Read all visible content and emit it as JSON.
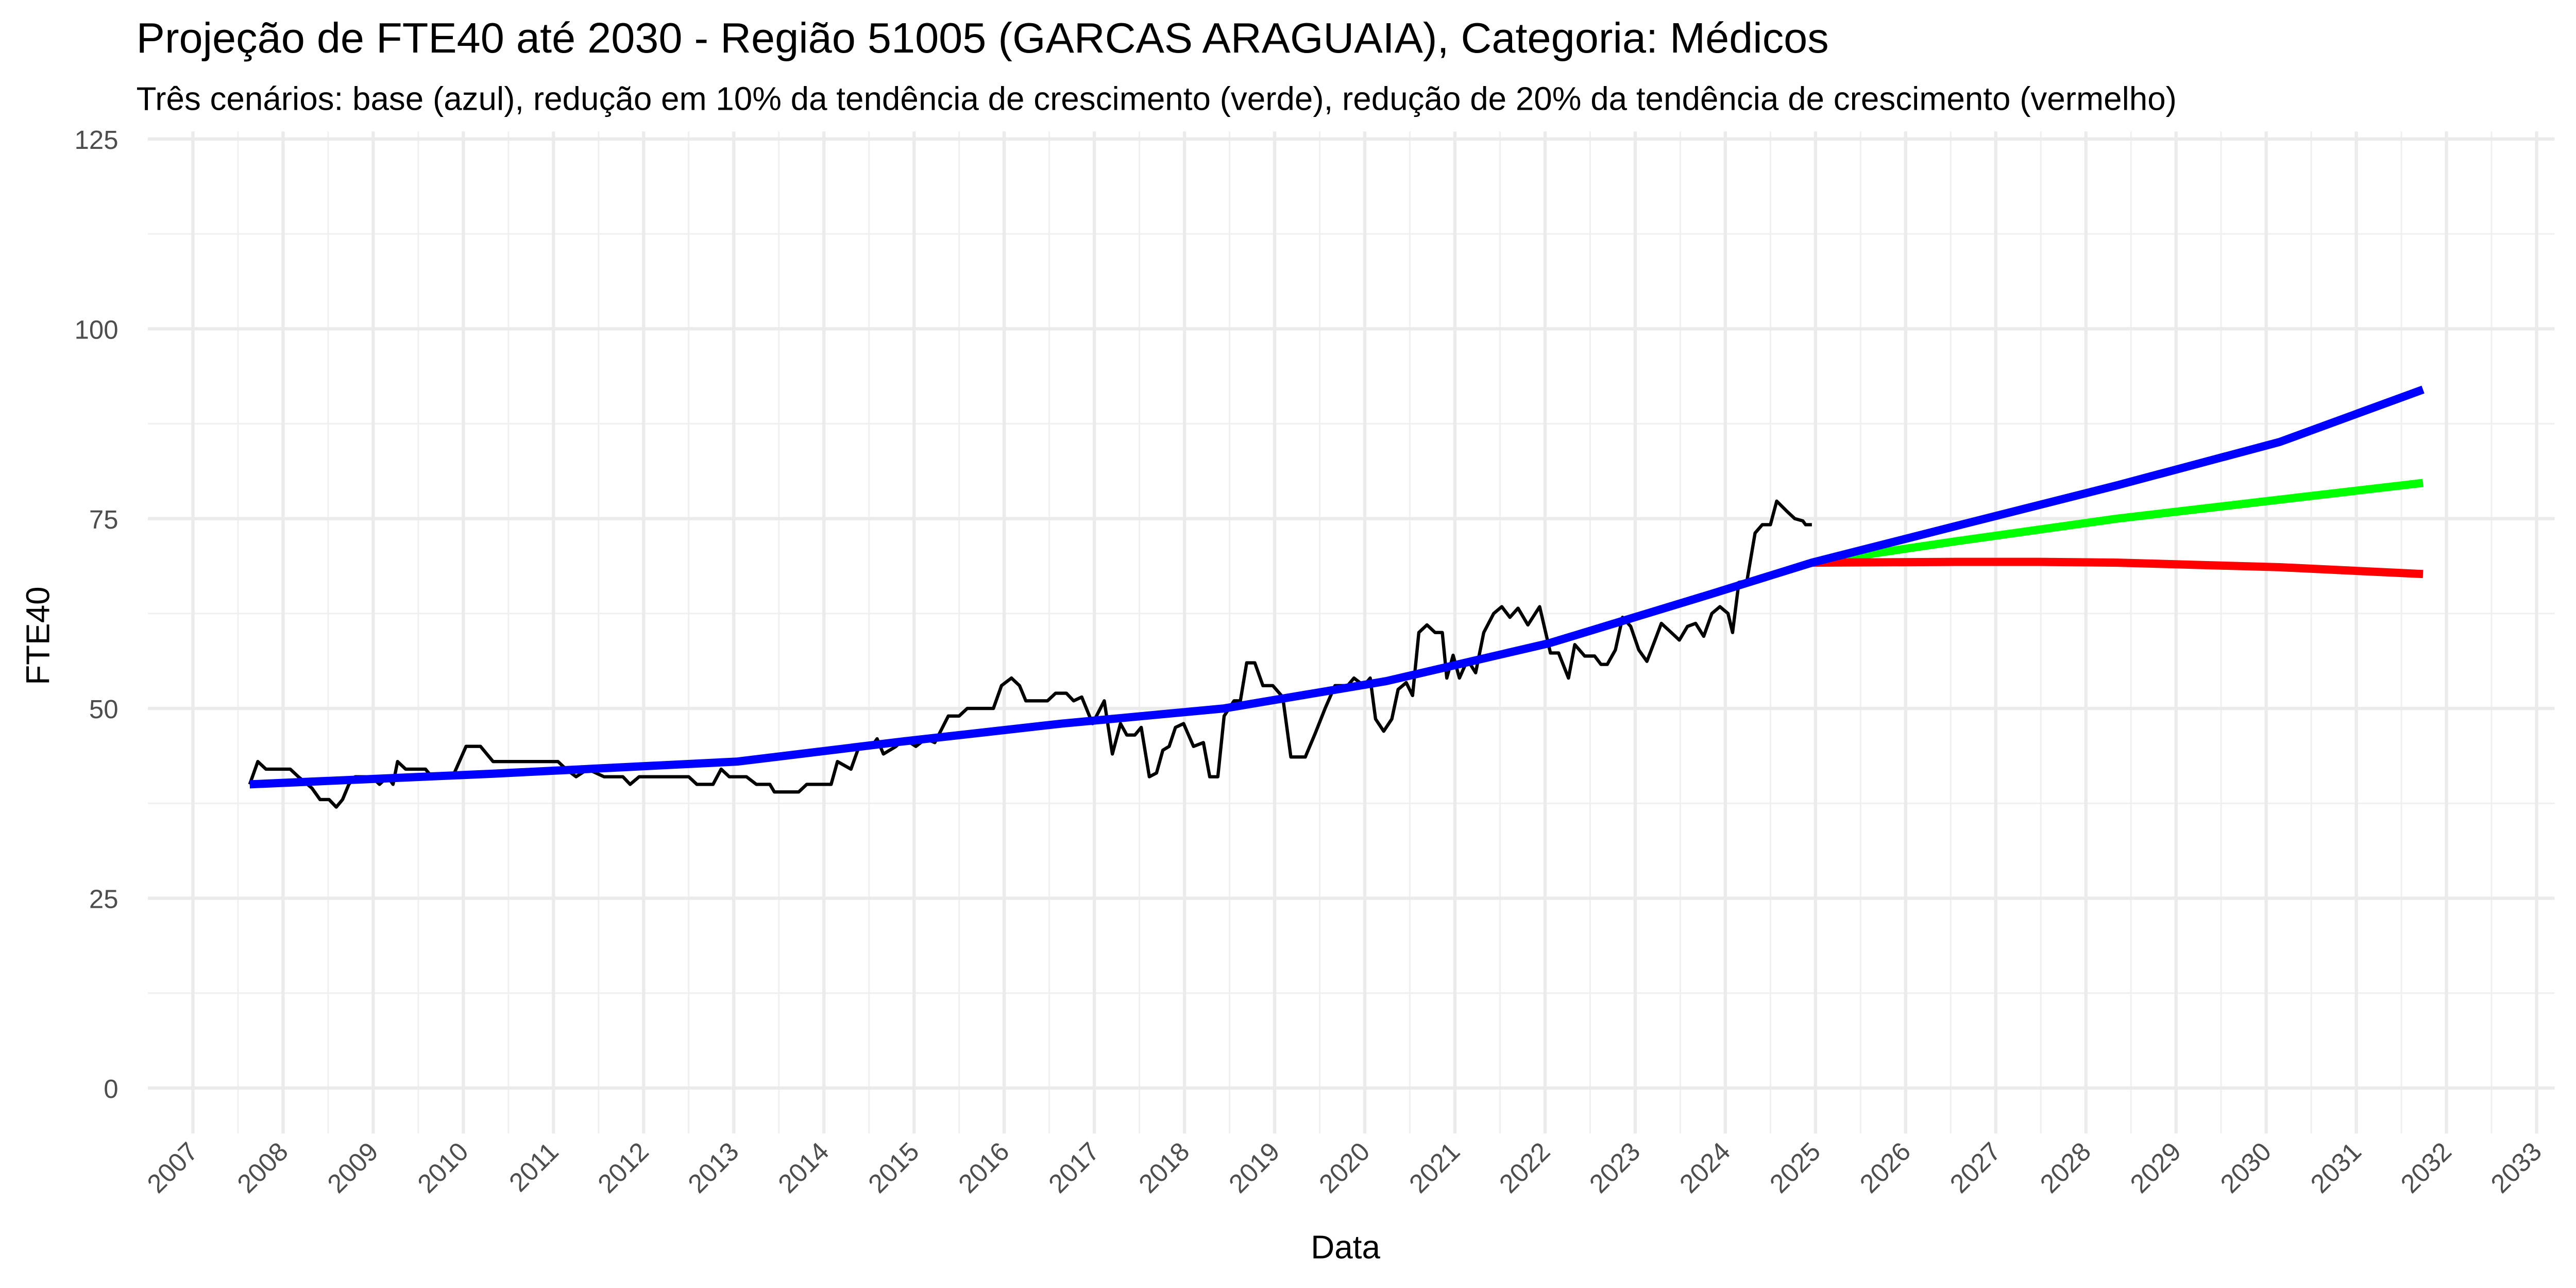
{
  "chart_data": {
    "type": "line",
    "title": "Projeção de FTE40 até 2030 - Região 51005 (GARCAS ARAGUAIA), Categoria: Médicos",
    "subtitle": "Três cenários: base (azul), redução em 10% da tendência de crescimento (verde), redução de 20% da tendência de crescimento (vermelho)",
    "x_label": "Data",
    "y_label": "FTE40",
    "xlim": [
      2006.5,
      2033.2
    ],
    "xticks": [
      2007,
      2008,
      2009,
      2010,
      2011,
      2012,
      2013,
      2014,
      2015,
      2016,
      2017,
      2018,
      2019,
      2020,
      2021,
      2022,
      2023,
      2024,
      2025,
      2026,
      2027,
      2028,
      2029,
      2030,
      2031,
      2032,
      2033
    ],
    "ylim": [
      -6,
      126
    ],
    "yticks": [
      0,
      25,
      50,
      75,
      100,
      125
    ],
    "grid": true,
    "minor_grid": true,
    "series": [
      {
        "color": "#000000",
        "width": 2,
        "x": [
          2007.63,
          2007.72,
          2007.81,
          2008.08,
          2008.17,
          2008.32,
          2008.41,
          2008.51,
          2008.59,
          2008.66,
          2008.73,
          2008.8,
          2008.98,
          2009.07,
          2009.16,
          2009.22,
          2009.27,
          2009.36,
          2009.58,
          2009.65,
          2009.9,
          2010.03,
          2010.19,
          2010.33,
          2011.05,
          2011.14,
          2011.25,
          2011.38,
          2011.56,
          2011.77,
          2011.85,
          2011.95,
          2012.5,
          2012.59,
          2012.77,
          2012.86,
          2012.95,
          2013.14,
          2013.25,
          2013.4,
          2013.45,
          2013.72,
          2013.81,
          2014.08,
          2014.15,
          2014.3,
          2014.39,
          2014.53,
          2014.59,
          2014.66,
          2014.8,
          2014.89,
          2015.02,
          2015.13,
          2015.23,
          2015.38,
          2015.5,
          2015.59,
          2015.88,
          2015.97,
          2016.08,
          2016.17,
          2016.24,
          2016.48,
          2016.57,
          2016.69,
          2016.77,
          2016.86,
          2016.98,
          2017.11,
          2017.2,
          2017.29,
          2017.36,
          2017.45,
          2017.52,
          2017.61,
          2017.69,
          2017.76,
          2017.83,
          2017.9,
          2017.99,
          2018.1,
          2018.21,
          2018.28,
          2018.37,
          2018.44,
          2018.55,
          2018.62,
          2018.69,
          2018.78,
          2018.87,
          2018.98,
          2019.09,
          2019.18,
          2019.34,
          2019.45,
          2019.56,
          2019.67,
          2019.81,
          2019.88,
          2019.99,
          2020.06,
          2020.12,
          2020.21,
          2020.3,
          2020.37,
          2020.46,
          2020.53,
          2020.6,
          2020.69,
          2020.78,
          2020.86,
          2020.91,
          2020.98,
          2021.05,
          2021.14,
          2021.23,
          2021.32,
          2021.43,
          2021.52,
          2021.61,
          2021.7,
          2021.81,
          2021.94,
          2022.06,
          2022.15,
          2022.26,
          2022.33,
          2022.44,
          2022.55,
          2022.62,
          2022.69,
          2022.78,
          2022.86,
          2022.95,
          2023.04,
          2023.13,
          2023.22,
          2023.29,
          2023.4,
          2023.49,
          2023.58,
          2023.67,
          2023.76,
          2023.85,
          2023.94,
          2024.03,
          2024.08,
          2024.15,
          2024.24,
          2024.33,
          2024.41,
          2024.5,
          2024.57,
          2024.68,
          2024.77,
          2024.86,
          2024.89,
          2024.96
        ],
        "values": [
          40,
          43,
          42,
          42,
          41,
          39.5,
          38,
          38,
          37,
          38,
          40,
          41,
          41,
          40,
          41,
          40,
          43,
          42,
          42,
          41,
          41.5,
          45,
          45,
          43,
          43,
          42,
          41,
          42,
          41,
          41,
          40,
          41,
          41,
          40,
          40,
          42,
          41,
          41,
          40,
          40,
          39,
          39,
          40,
          40,
          43,
          42,
          45,
          45,
          46,
          44,
          45,
          46,
          45,
          46,
          45.5,
          49,
          49,
          50,
          50,
          53,
          54,
          53,
          51,
          51,
          52,
          52,
          51,
          51.5,
          48,
          51,
          44,
          48,
          46.5,
          46.5,
          47.5,
          41,
          41.5,
          44.5,
          45,
          47.5,
          48,
          45,
          45.5,
          41,
          41,
          49,
          51,
          51,
          56,
          56,
          53,
          53,
          51.5,
          43.6,
          43.6,
          46.7,
          50,
          53,
          53,
          54,
          53,
          54,
          48.6,
          47,
          48.6,
          52.5,
          53.4,
          51.7,
          60,
          61,
          60,
          60,
          54,
          57,
          54,
          56.4,
          54.7,
          60,
          62.5,
          63.4,
          62,
          63.2,
          61,
          63.4,
          57.3,
          57.3,
          54,
          58.4,
          56.9,
          56.9,
          55.8,
          55.8,
          57.7,
          62,
          60.8,
          57.7,
          56.2,
          59,
          61.2,
          60,
          59,
          60.8,
          61.2,
          59.5,
          62.5,
          63.4,
          62.5,
          60,
          66.6,
          66.8,
          73.1,
          74.2,
          74.2,
          77.3,
          76,
          75,
          74.7,
          74.2,
          74.2
        ]
      },
      {
        "color": "#00ff00",
        "width": 5,
        "x": [
          2024.96,
          2026.55,
          2028.35,
          2030.15,
          2031.74
        ],
        "values": [
          69.2,
          72,
          75,
          77.5,
          79.7
        ]
      },
      {
        "color": "#ff0000",
        "width": 5,
        "x": [
          2024.96,
          2026.55,
          2027.5,
          2028.35,
          2030.15,
          2031.74
        ],
        "values": [
          69.2,
          69.3,
          69.3,
          69.2,
          68.6,
          67.7
        ]
      },
      {
        "color": "#0000ff",
        "width": 5,
        "x": [
          2007.63,
          2010.33,
          2013.04,
          2014.84,
          2016.64,
          2018.44,
          2020.24,
          2022.05,
          2023.85,
          2024.96,
          2026.55,
          2028.35,
          2030.15,
          2031.74
        ],
        "values": [
          40,
          41.4,
          43,
          45.6,
          48,
          50,
          53.6,
          58.6,
          65.1,
          69.2,
          74,
          79.4,
          85.1,
          92
        ]
      }
    ]
  }
}
